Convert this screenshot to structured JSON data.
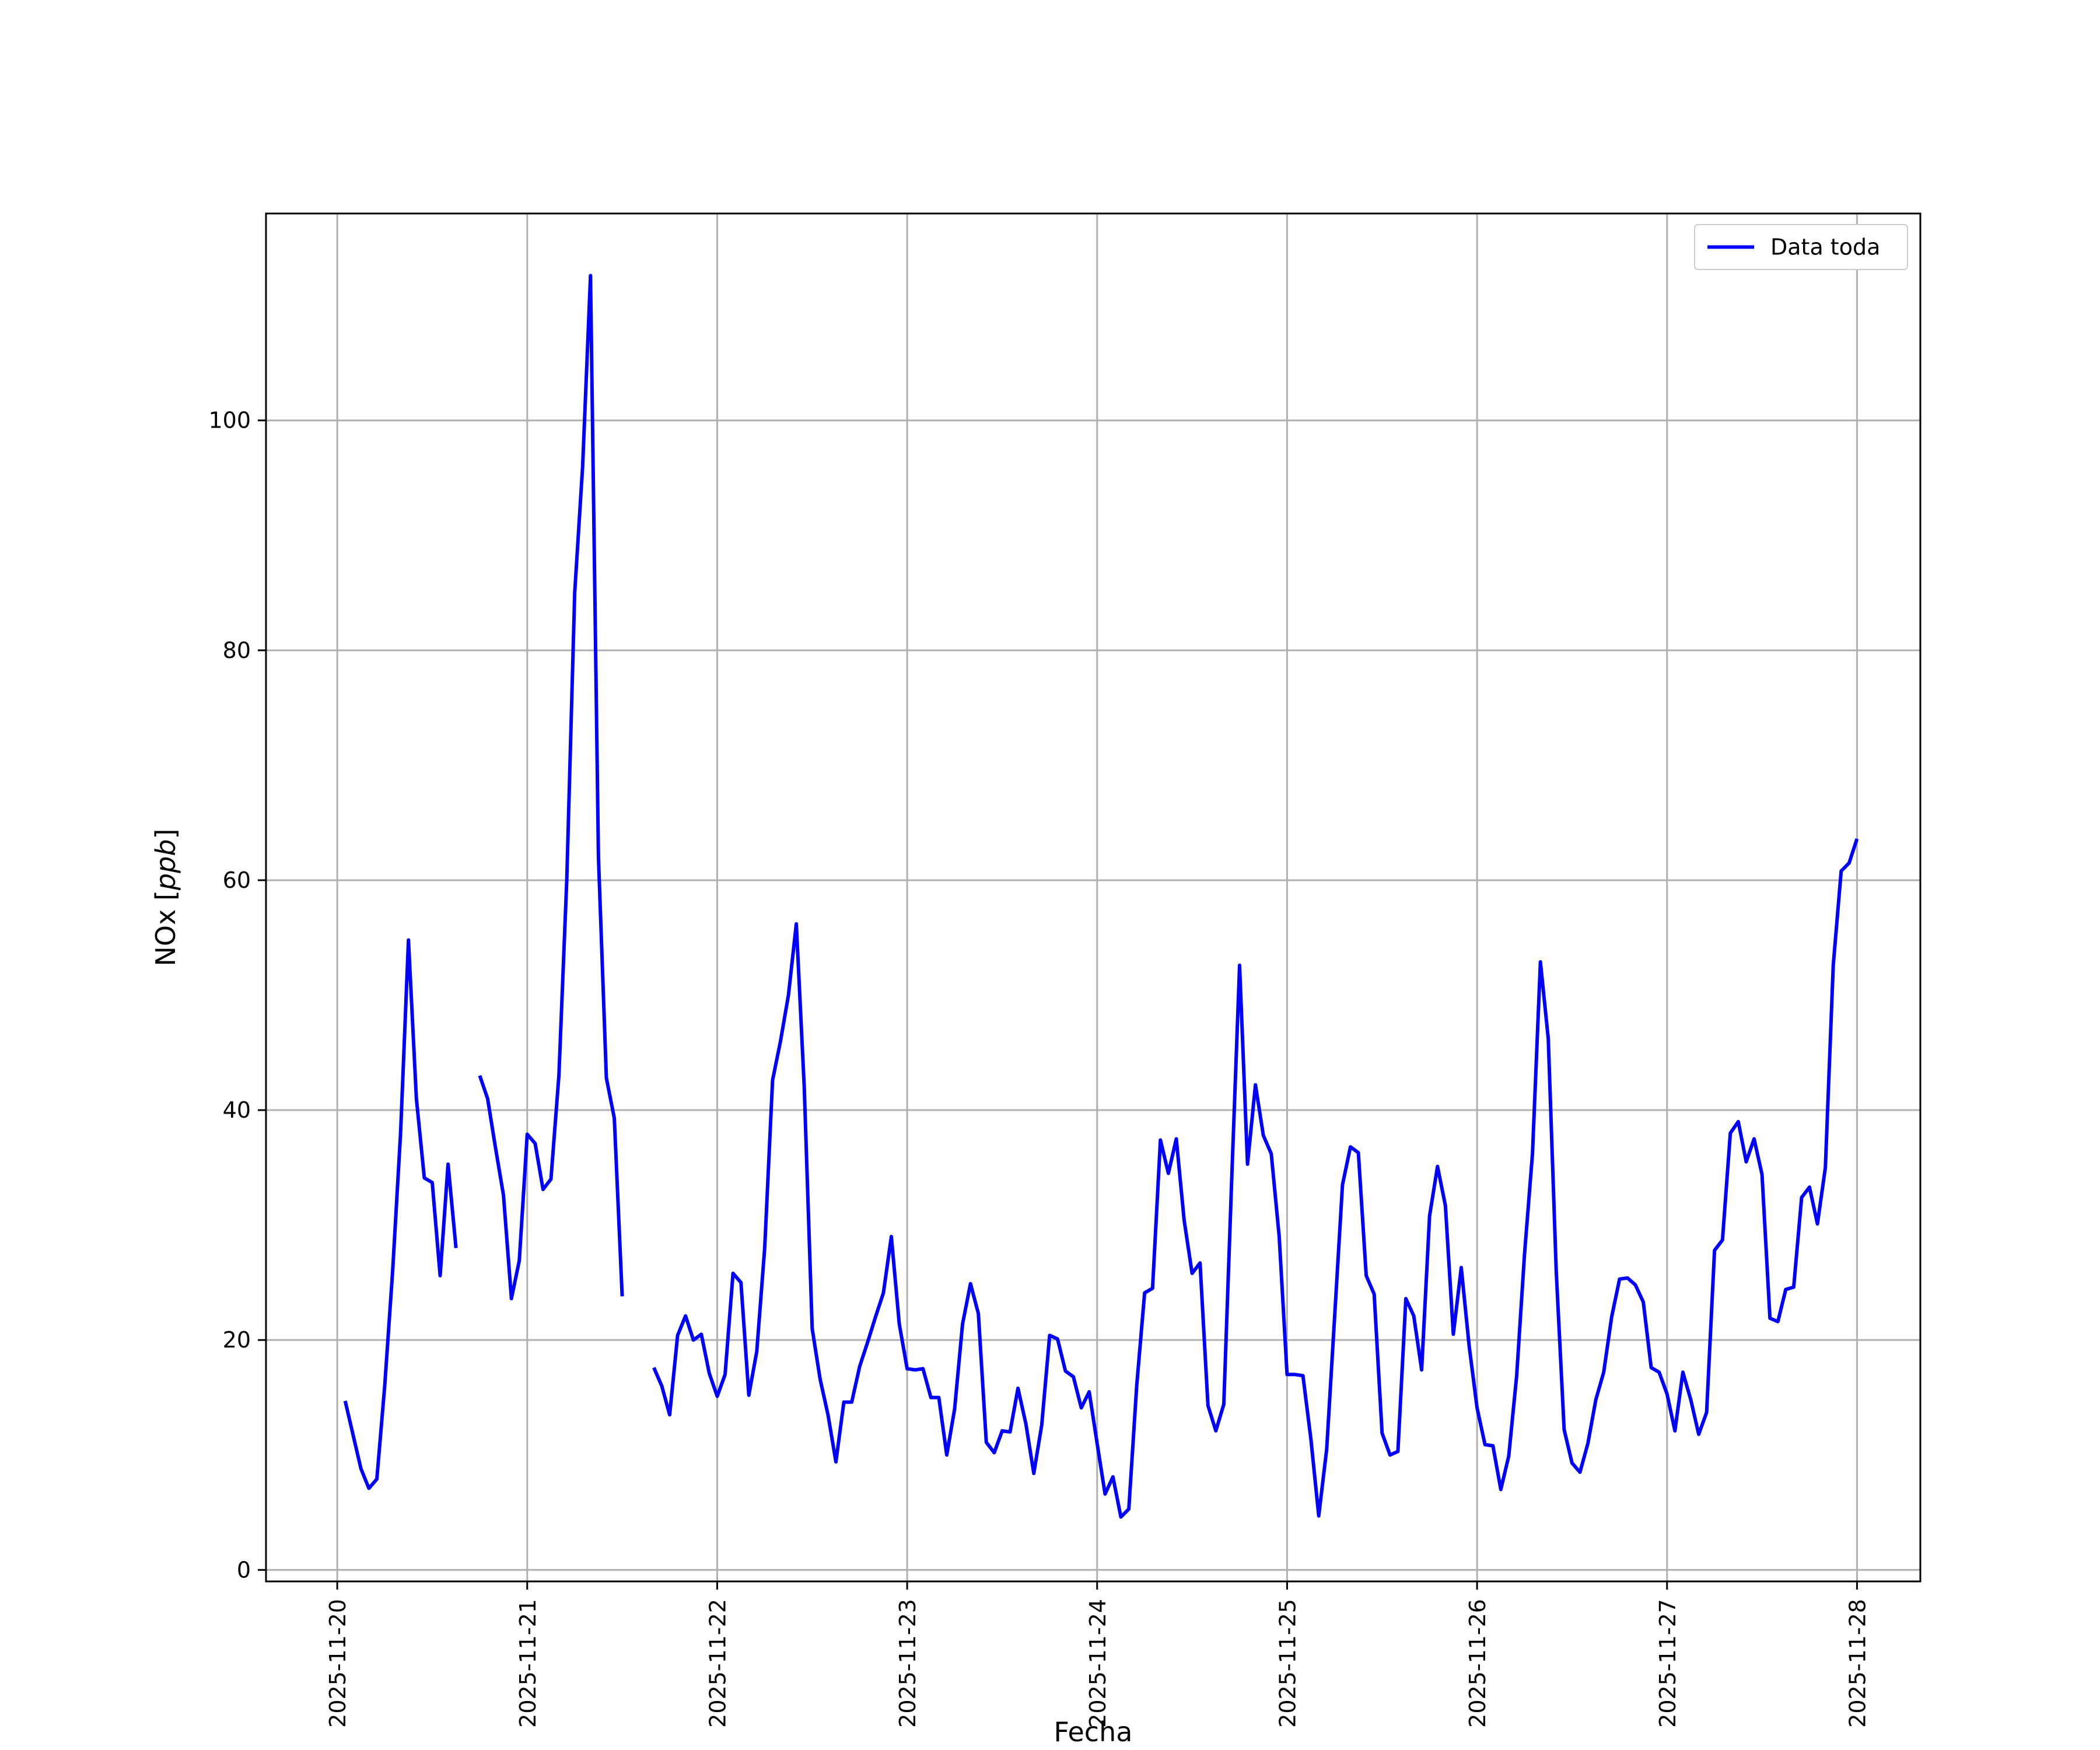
{
  "chart_data": {
    "type": "line",
    "xlabel": "Fecha",
    "ylabel_prefix": "NOx [",
    "ylabel_unit": "ppb",
    "ylabel_suffix": "]",
    "xlim": [
      "2025-11-19 15:00",
      "2025-11-28 08:00"
    ],
    "ylim": [
      -1,
      118
    ],
    "grid": true,
    "legend_position": "top-right",
    "line_color": "#0000ff",
    "y_ticks": [
      0,
      20,
      40,
      60,
      80,
      100
    ],
    "x_ticks": [
      "2025-11-20",
      "2025-11-21",
      "2025-11-22",
      "2025-11-23",
      "2025-11-24",
      "2025-11-25",
      "2025-11-26",
      "2025-11-27",
      "2025-11-28"
    ],
    "series": [
      {
        "name": "Data toda",
        "points": [
          [
            "2025-11-20 01:00",
            14.7
          ],
          [
            "2025-11-20 03:00",
            8.8
          ],
          [
            "2025-11-20 04:00",
            7.1
          ],
          [
            "2025-11-20 05:00",
            7.9
          ],
          [
            "2025-11-20 06:00",
            16.0
          ],
          [
            "2025-11-20 07:00",
            26.0
          ],
          [
            "2025-11-20 08:00",
            38.0
          ],
          [
            "2025-11-20 09:00",
            54.8
          ],
          [
            "2025-11-20 10:00",
            41.0
          ],
          [
            "2025-11-20 11:00",
            34.1
          ],
          [
            "2025-11-20 12:00",
            33.7
          ],
          [
            "2025-11-20 13:00",
            25.6
          ],
          [
            "2025-11-20 14:00",
            35.3
          ],
          [
            "2025-11-20 15:00",
            28.0
          ],
          [
            "2025-11-20 16:00",
            null
          ],
          [
            "2025-11-20 18:00",
            43.0
          ],
          [
            "2025-11-20 19:00",
            41.0
          ],
          [
            "2025-11-20 20:00",
            36.7
          ],
          [
            "2025-11-20 21:00",
            32.6
          ],
          [
            "2025-11-20 22:00",
            23.6
          ],
          [
            "2025-11-20 23:00",
            26.9
          ],
          [
            "2025-11-21 00:00",
            37.9
          ],
          [
            "2025-11-21 01:00",
            37.1
          ],
          [
            "2025-11-21 02:00",
            33.1
          ],
          [
            "2025-11-21 03:00",
            34.0
          ],
          [
            "2025-11-21 04:00",
            43.0
          ],
          [
            "2025-11-21 05:00",
            60.0
          ],
          [
            "2025-11-21 06:00",
            85.0
          ],
          [
            "2025-11-21 07:00",
            96.0
          ],
          [
            "2025-11-21 08:00",
            112.6
          ],
          [
            "2025-11-21 09:00",
            62.0
          ],
          [
            "2025-11-21 10:00",
            42.8
          ],
          [
            "2025-11-21 11:00",
            39.3
          ],
          [
            "2025-11-21 12:00",
            23.8
          ],
          [
            "2025-11-21 13:00",
            null
          ],
          [
            "2025-11-21 16:00",
            17.6
          ],
          [
            "2025-11-21 17:00",
            16.0
          ],
          [
            "2025-11-21 18:00",
            13.5
          ],
          [
            "2025-11-21 19:00",
            20.4
          ],
          [
            "2025-11-21 20:00",
            22.1
          ],
          [
            "2025-11-21 21:00",
            20.0
          ],
          [
            "2025-11-21 22:00",
            20.5
          ],
          [
            "2025-11-21 23:00",
            17.1
          ],
          [
            "2025-11-22 00:00",
            15.1
          ],
          [
            "2025-11-22 01:00",
            17.0
          ],
          [
            "2025-11-22 02:00",
            25.8
          ],
          [
            "2025-11-22 03:00",
            25.0
          ],
          [
            "2025-11-22 04:00",
            15.2
          ],
          [
            "2025-11-22 05:00",
            19.0
          ],
          [
            "2025-11-22 06:00",
            28.0
          ],
          [
            "2025-11-22 07:00",
            42.6
          ],
          [
            "2025-11-22 08:00",
            46.0
          ],
          [
            "2025-11-22 09:00",
            50.0
          ],
          [
            "2025-11-22 10:00",
            56.2
          ],
          [
            "2025-11-22 11:00",
            42.0
          ],
          [
            "2025-11-22 12:00",
            21.0
          ],
          [
            "2025-11-22 13:00",
            16.6
          ],
          [
            "2025-11-22 14:00",
            13.5
          ],
          [
            "2025-11-22 15:00",
            9.4
          ],
          [
            "2025-11-22 16:00",
            14.6
          ],
          [
            "2025-11-22 17:00",
            14.6
          ],
          [
            "2025-11-22 18:00",
            17.7
          ],
          [
            "2025-11-22 19:00",
            19.8
          ],
          [
            "2025-11-22 20:00",
            22.0
          ],
          [
            "2025-11-22 21:00",
            24.1
          ],
          [
            "2025-11-22 22:00",
            29.0
          ],
          [
            "2025-11-22 23:00",
            21.4
          ],
          [
            "2025-11-23 00:00",
            17.5
          ],
          [
            "2025-11-23 01:00",
            17.4
          ],
          [
            "2025-11-23 02:00",
            17.5
          ],
          [
            "2025-11-23 03:00",
            15.0
          ],
          [
            "2025-11-23 04:00",
            15.0
          ],
          [
            "2025-11-23 05:00",
            10.0
          ],
          [
            "2025-11-23 06:00",
            14.0
          ],
          [
            "2025-11-23 07:00",
            21.4
          ],
          [
            "2025-11-23 08:00",
            24.9
          ],
          [
            "2025-11-23 09:00",
            22.3
          ],
          [
            "2025-11-23 10:00",
            11.1
          ],
          [
            "2025-11-23 11:00",
            10.2
          ],
          [
            "2025-11-23 12:00",
            12.1
          ],
          [
            "2025-11-23 13:00",
            12.0
          ],
          [
            "2025-11-23 14:00",
            15.8
          ],
          [
            "2025-11-23 15:00",
            12.7
          ],
          [
            "2025-11-23 16:00",
            8.4
          ],
          [
            "2025-11-23 17:00",
            12.6
          ],
          [
            "2025-11-23 18:00",
            20.4
          ],
          [
            "2025-11-23 19:00",
            20.1
          ],
          [
            "2025-11-23 20:00",
            17.3
          ],
          [
            "2025-11-23 21:00",
            16.8
          ],
          [
            "2025-11-23 22:00",
            14.1
          ],
          [
            "2025-11-23 23:00",
            15.5
          ],
          [
            "2025-11-24 00:00",
            11.0
          ],
          [
            "2025-11-24 01:00",
            6.6
          ],
          [
            "2025-11-24 02:00",
            8.1
          ],
          [
            "2025-11-24 03:00",
            4.6
          ],
          [
            "2025-11-24 04:00",
            5.3
          ],
          [
            "2025-11-24 05:00",
            16.0
          ],
          [
            "2025-11-24 06:00",
            24.1
          ],
          [
            "2025-11-24 07:00",
            24.5
          ],
          [
            "2025-11-24 08:00",
            37.4
          ],
          [
            "2025-11-24 09:00",
            34.5
          ],
          [
            "2025-11-24 10:00",
            37.5
          ],
          [
            "2025-11-24 11:00",
            30.4
          ],
          [
            "2025-11-24 12:00",
            25.8
          ],
          [
            "2025-11-24 13:00",
            26.7
          ],
          [
            "2025-11-24 14:00",
            14.3
          ],
          [
            "2025-11-24 15:00",
            12.1
          ],
          [
            "2025-11-24 16:00",
            14.4
          ],
          [
            "2025-11-24 17:00",
            34.0
          ],
          [
            "2025-11-24 18:00",
            52.6
          ],
          [
            "2025-11-24 19:00",
            35.3
          ],
          [
            "2025-11-24 20:00",
            42.2
          ],
          [
            "2025-11-24 21:00",
            37.8
          ],
          [
            "2025-11-24 22:00",
            36.2
          ],
          [
            "2025-11-24 23:00",
            29.0
          ],
          [
            "2025-11-25 00:00",
            17.0
          ],
          [
            "2025-11-25 01:00",
            17.0
          ],
          [
            "2025-11-25 02:00",
            16.9
          ],
          [
            "2025-11-25 03:00",
            11.4
          ],
          [
            "2025-11-25 04:00",
            4.7
          ],
          [
            "2025-11-25 05:00",
            10.5
          ],
          [
            "2025-11-25 06:00",
            22.0
          ],
          [
            "2025-11-25 07:00",
            33.5
          ],
          [
            "2025-11-25 08:00",
            36.8
          ],
          [
            "2025-11-25 09:00",
            36.3
          ],
          [
            "2025-11-25 10:00",
            25.6
          ],
          [
            "2025-11-25 11:00",
            24.0
          ],
          [
            "2025-11-25 12:00",
            11.9
          ],
          [
            "2025-11-25 13:00",
            10.0
          ],
          [
            "2025-11-25 14:00",
            10.3
          ],
          [
            "2025-11-25 15:00",
            23.6
          ],
          [
            "2025-11-25 16:00",
            22.1
          ],
          [
            "2025-11-25 17:00",
            17.4
          ],
          [
            "2025-11-25 18:00",
            30.8
          ],
          [
            "2025-11-25 19:00",
            35.1
          ],
          [
            "2025-11-25 20:00",
            31.7
          ],
          [
            "2025-11-25 21:00",
            20.5
          ],
          [
            "2025-11-25 22:00",
            26.3
          ],
          [
            "2025-11-25 23:00",
            19.5
          ],
          [
            "2025-11-26 00:00",
            14.1
          ],
          [
            "2025-11-26 01:00",
            10.9
          ],
          [
            "2025-11-26 02:00",
            10.8
          ],
          [
            "2025-11-26 03:00",
            7.0
          ],
          [
            "2025-11-26 04:00",
            9.9
          ],
          [
            "2025-11-26 05:00",
            16.9
          ],
          [
            "2025-11-26 06:00",
            27.5
          ],
          [
            "2025-11-26 07:00",
            36.2
          ],
          [
            "2025-11-26 08:00",
            52.9
          ],
          [
            "2025-11-26 09:00",
            46.2
          ],
          [
            "2025-11-26 10:00",
            26.0
          ],
          [
            "2025-11-26 11:00",
            12.2
          ],
          [
            "2025-11-26 12:00",
            9.3
          ],
          [
            "2025-11-26 13:00",
            8.5
          ],
          [
            "2025-11-26 14:00",
            11.0
          ],
          [
            "2025-11-26 15:00",
            14.8
          ],
          [
            "2025-11-26 16:00",
            17.2
          ],
          [
            "2025-11-26 17:00",
            22.0
          ],
          [
            "2025-11-26 18:00",
            25.3
          ],
          [
            "2025-11-26 19:00",
            25.4
          ],
          [
            "2025-11-26 20:00",
            24.8
          ],
          [
            "2025-11-26 21:00",
            23.3
          ],
          [
            "2025-11-26 22:00",
            17.6
          ],
          [
            "2025-11-26 23:00",
            17.2
          ],
          [
            "2025-11-27 00:00",
            15.3
          ],
          [
            "2025-11-27 01:00",
            12.1
          ],
          [
            "2025-11-27 02:00",
            17.2
          ],
          [
            "2025-11-27 03:00",
            14.8
          ],
          [
            "2025-11-27 04:00",
            11.8
          ],
          [
            "2025-11-27 05:00",
            13.7
          ],
          [
            "2025-11-27 06:00",
            27.8
          ],
          [
            "2025-11-27 07:00",
            28.7
          ],
          [
            "2025-11-27 08:00",
            38.0
          ],
          [
            "2025-11-27 09:00",
            39.0
          ],
          [
            "2025-11-27 10:00",
            35.5
          ],
          [
            "2025-11-27 11:00",
            37.5
          ],
          [
            "2025-11-27 12:00",
            34.4
          ],
          [
            "2025-11-27 13:00",
            21.9
          ],
          [
            "2025-11-27 14:00",
            21.6
          ],
          [
            "2025-11-27 15:00",
            24.4
          ],
          [
            "2025-11-27 16:00",
            24.6
          ],
          [
            "2025-11-27 17:00",
            32.4
          ],
          [
            "2025-11-27 18:00",
            33.3
          ],
          [
            "2025-11-27 19:00",
            30.1
          ],
          [
            "2025-11-27 20:00",
            35.0
          ],
          [
            "2025-11-27 21:00",
            52.6
          ],
          [
            "2025-11-27 22:00",
            60.8
          ],
          [
            "2025-11-27 23:00",
            61.5
          ],
          [
            "2025-11-28 00:00",
            63.6
          ]
        ]
      }
    ]
  }
}
